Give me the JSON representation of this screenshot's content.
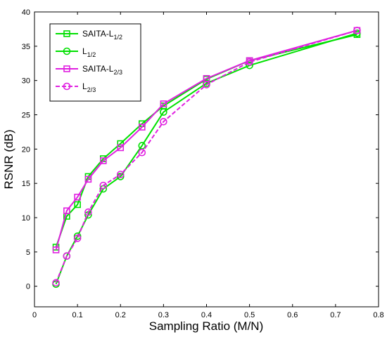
{
  "chart_data": {
    "type": "line",
    "xlabel": "Sampling Ratio (M/N)",
    "ylabel": "RSNR (dB)",
    "xlim": [
      0,
      0.8
    ],
    "ylim": [
      -3,
      40
    ],
    "xticks": [
      "0",
      "0.1",
      "0.2",
      "0.3",
      "0.4",
      "0.5",
      "0.6",
      "0.7",
      "0.8"
    ],
    "yticks": [
      "0",
      "5",
      "10",
      "15",
      "20",
      "25",
      "30",
      "35",
      "40"
    ],
    "grid": false,
    "legend_position": "top-left",
    "series": [
      {
        "name": "SAITA-L",
        "name_sub": "1/2",
        "color": "#00e000",
        "marker": "square",
        "dash": "solid",
        "x": [
          0.05,
          0.075,
          0.1,
          0.125,
          0.16,
          0.2,
          0.25,
          0.3,
          0.4,
          0.5,
          0.75
        ],
        "y": [
          5.7,
          10.2,
          11.9,
          16.0,
          18.6,
          20.8,
          23.7,
          26.3,
          30.2,
          32.9,
          36.7
        ]
      },
      {
        "name": "L",
        "name_sub": "1/2",
        "color": "#00e000",
        "marker": "circle",
        "dash": "solid",
        "x": [
          0.05,
          0.075,
          0.1,
          0.125,
          0.16,
          0.2,
          0.25,
          0.3,
          0.4,
          0.5,
          0.75
        ],
        "y": [
          0.3,
          4.4,
          7.3,
          10.4,
          14.2,
          16.0,
          20.5,
          25.4,
          29.6,
          32.2,
          36.9
        ]
      },
      {
        "name": "SAITA-L",
        "name_sub": "2/3",
        "color": "#e020e0",
        "marker": "square",
        "dash": "solid",
        "x": [
          0.05,
          0.075,
          0.1,
          0.125,
          0.16,
          0.2,
          0.25,
          0.3,
          0.4,
          0.5,
          0.75
        ],
        "y": [
          5.3,
          11.0,
          13.0,
          15.6,
          18.3,
          20.2,
          23.2,
          26.6,
          30.3,
          32.9,
          37.3
        ]
      },
      {
        "name": "L",
        "name_sub": "2/3",
        "color": "#e020e0",
        "marker": "circle",
        "dash": "dashed",
        "x": [
          0.05,
          0.075,
          0.1,
          0.125,
          0.16,
          0.2,
          0.25,
          0.3,
          0.4,
          0.5,
          0.75
        ],
        "y": [
          0.5,
          4.4,
          7.0,
          10.8,
          14.7,
          16.3,
          19.5,
          24.0,
          29.4,
          32.7,
          37.3
        ]
      }
    ]
  }
}
